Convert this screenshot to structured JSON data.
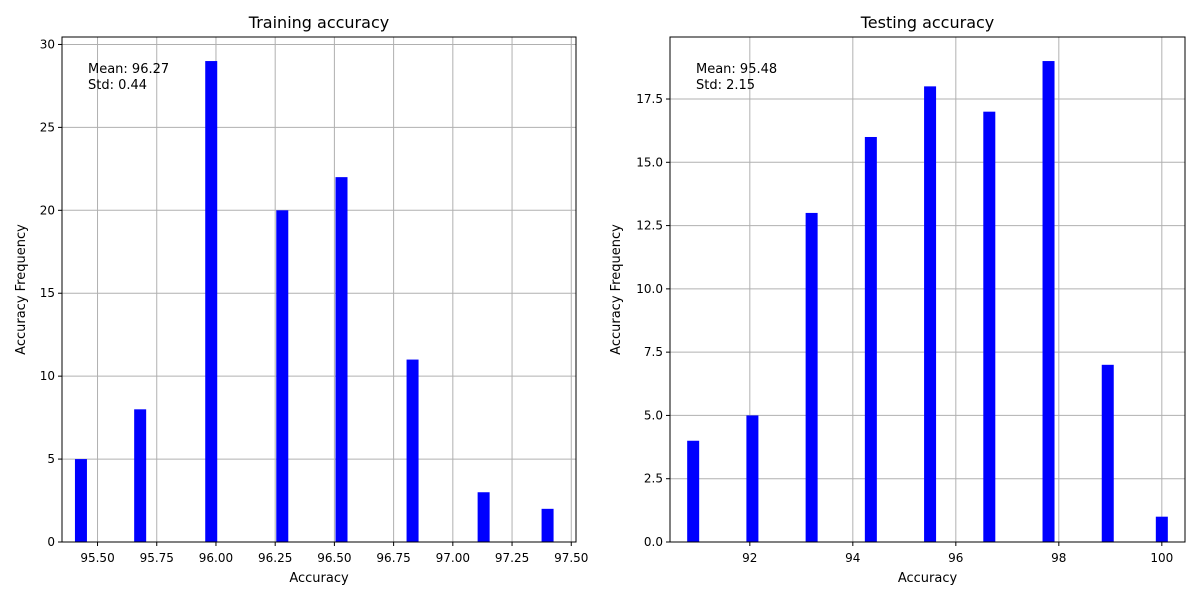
{
  "chart_data": [
    {
      "type": "bar",
      "title": "Training accuracy",
      "xlabel": "Accuracy",
      "ylabel": "Accuracy Frequency",
      "x": [
        95.43,
        95.68,
        95.98,
        96.28,
        96.53,
        96.83,
        97.13,
        97.4
      ],
      "values": [
        5,
        8,
        29,
        20,
        22,
        11,
        3,
        2
      ],
      "xlim": [
        95.35,
        97.52
      ],
      "ylim": [
        0,
        30.45
      ],
      "xticks": [
        95.5,
        95.75,
        96.0,
        96.25,
        96.5,
        96.75,
        97.0,
        97.25,
        97.5
      ],
      "xtick_labels": [
        "95.50",
        "95.75",
        "96.00",
        "96.25",
        "96.50",
        "96.75",
        "97.00",
        "97.25",
        "97.50"
      ],
      "yticks": [
        0,
        5,
        10,
        15,
        20,
        25,
        30
      ],
      "ytick_labels": [
        "0",
        "5",
        "10",
        "15",
        "20",
        "25",
        "30"
      ],
      "annotation": [
        "Mean: 96.27",
        "Std: 0.44"
      ],
      "bar_color": "#0000ff",
      "grid": true
    },
    {
      "type": "bar",
      "title": "Testing accuracy",
      "xlabel": "Accuracy",
      "ylabel": "Accuracy Frequency",
      "x": [
        90.9,
        92.05,
        93.2,
        94.35,
        95.5,
        96.65,
        97.8,
        98.95,
        100.0
      ],
      "values": [
        4,
        5,
        13,
        16,
        18,
        17,
        19,
        7,
        1
      ],
      "xlim": [
        90.45,
        100.45
      ],
      "ylim": [
        0,
        19.95
      ],
      "xticks": [
        92,
        94,
        96,
        98,
        100
      ],
      "xtick_labels": [
        "92",
        "94",
        "96",
        "98",
        "100"
      ],
      "yticks": [
        0,
        2.5,
        5,
        7.5,
        10,
        12.5,
        15,
        17.5
      ],
      "ytick_labels": [
        "0.0",
        "2.5",
        "5.0",
        "7.5",
        "10.0",
        "12.5",
        "15.0",
        "17.5"
      ],
      "annotation": [
        "Mean: 95.48",
        "Std: 2.15"
      ],
      "bar_color": "#0000ff",
      "grid": true
    }
  ]
}
